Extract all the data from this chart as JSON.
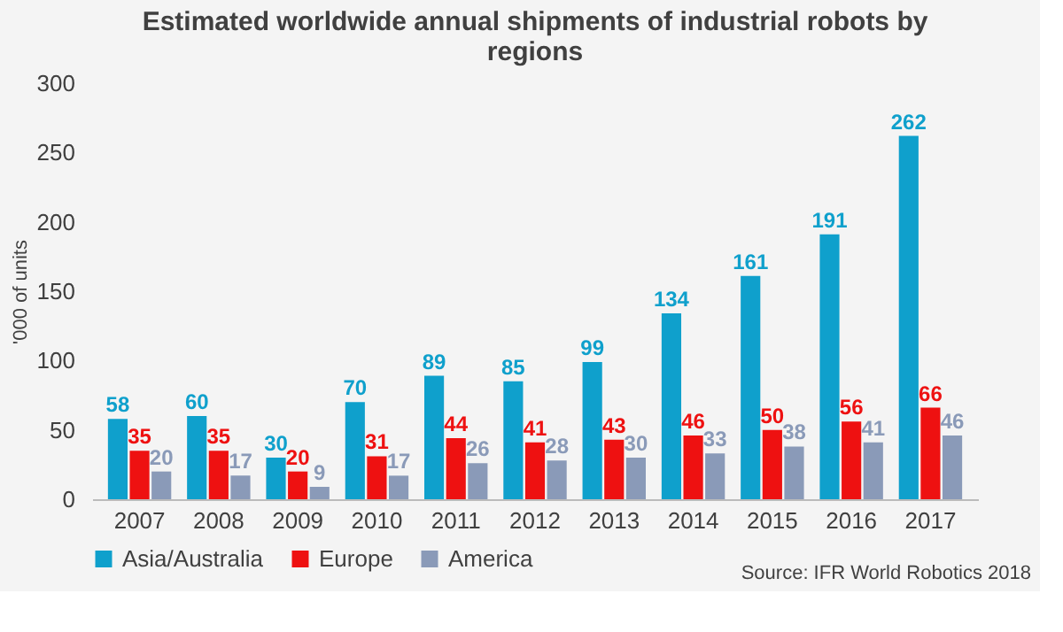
{
  "chart_data": {
    "type": "bar",
    "title": "Estimated worldwide annual shipments of industrial robots by regions",
    "ylabel": "'000 of units",
    "categories": [
      "2007",
      "2008",
      "2009",
      "2010",
      "2011",
      "2012",
      "2013",
      "2014",
      "2015",
      "2016",
      "2017"
    ],
    "series": [
      {
        "name": "Asia/Australia",
        "color": "#0fa0cc",
        "values": [
          58,
          60,
          30,
          70,
          89,
          85,
          99,
          134,
          161,
          191,
          262
        ]
      },
      {
        "name": "Europe",
        "color": "#ee1111",
        "values": [
          35,
          35,
          20,
          31,
          44,
          41,
          43,
          46,
          50,
          56,
          66
        ]
      },
      {
        "name": "America",
        "color": "#8a9ab8",
        "values": [
          20,
          17,
          9,
          17,
          26,
          28,
          30,
          33,
          38,
          41,
          46
        ]
      }
    ],
    "ylim": [
      0,
      300
    ],
    "yticks": [
      0,
      50,
      100,
      150,
      200,
      250,
      300
    ],
    "data_labels": true,
    "grid": false,
    "legend": "bottom",
    "annotations": [
      "Source: IFR World Robotics 2018"
    ]
  }
}
